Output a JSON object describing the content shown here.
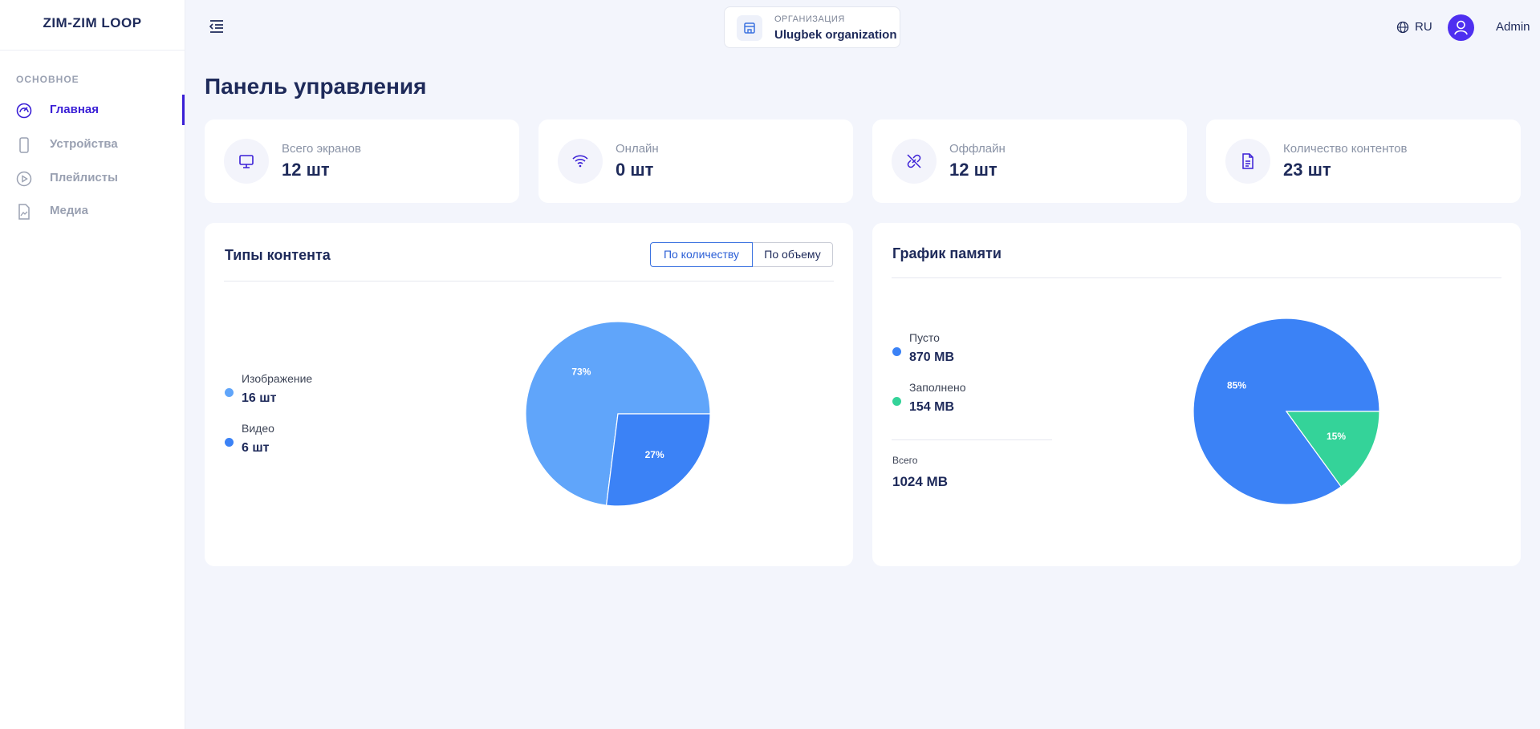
{
  "sidebar": {
    "logo": "ZIM-ZIM LOOP",
    "section": "ОСНОВНОЕ",
    "menu": [
      "Главная",
      "Устройства",
      "Плейлисты",
      "Медиа"
    ]
  },
  "header": {
    "org_label": "ОРГАНИЗАЦИЯ",
    "org_name": "Ulugbek organization",
    "language": "RU",
    "user": "Admin"
  },
  "page_title": "Панель управления",
  "stats": [
    {
      "label": "Всего экранов",
      "value": "12 шт"
    },
    {
      "label": "Онлайн",
      "value": "0 шт"
    },
    {
      "label": "Оффлайн",
      "value": "12 шт"
    },
    {
      "label": "Количество контентов",
      "value": "23 шт"
    }
  ],
  "chart_data": [
    {
      "type": "pie",
      "title": "Типы контента",
      "toggle": [
        "По количеству",
        "По объему"
      ],
      "categories": [
        "Изображение",
        "Видео"
      ],
      "values": [
        73,
        27
      ],
      "value_labels": [
        "73%",
        "27%"
      ],
      "amounts": [
        "16 шт",
        "6 шт"
      ],
      "colors": [
        "#60a5fa",
        "#3b82f6"
      ]
    },
    {
      "type": "pie",
      "title": "График памяти",
      "categories": [
        "Пусто",
        "Заполнено"
      ],
      "values": [
        85,
        15
      ],
      "value_labels": [
        "85%",
        "15%"
      ],
      "amounts": [
        "870 MB",
        "154 MB"
      ],
      "colors": [
        "#3b82f6",
        "#34d399"
      ],
      "total_label": "Всего",
      "total": "1024 MB"
    }
  ]
}
